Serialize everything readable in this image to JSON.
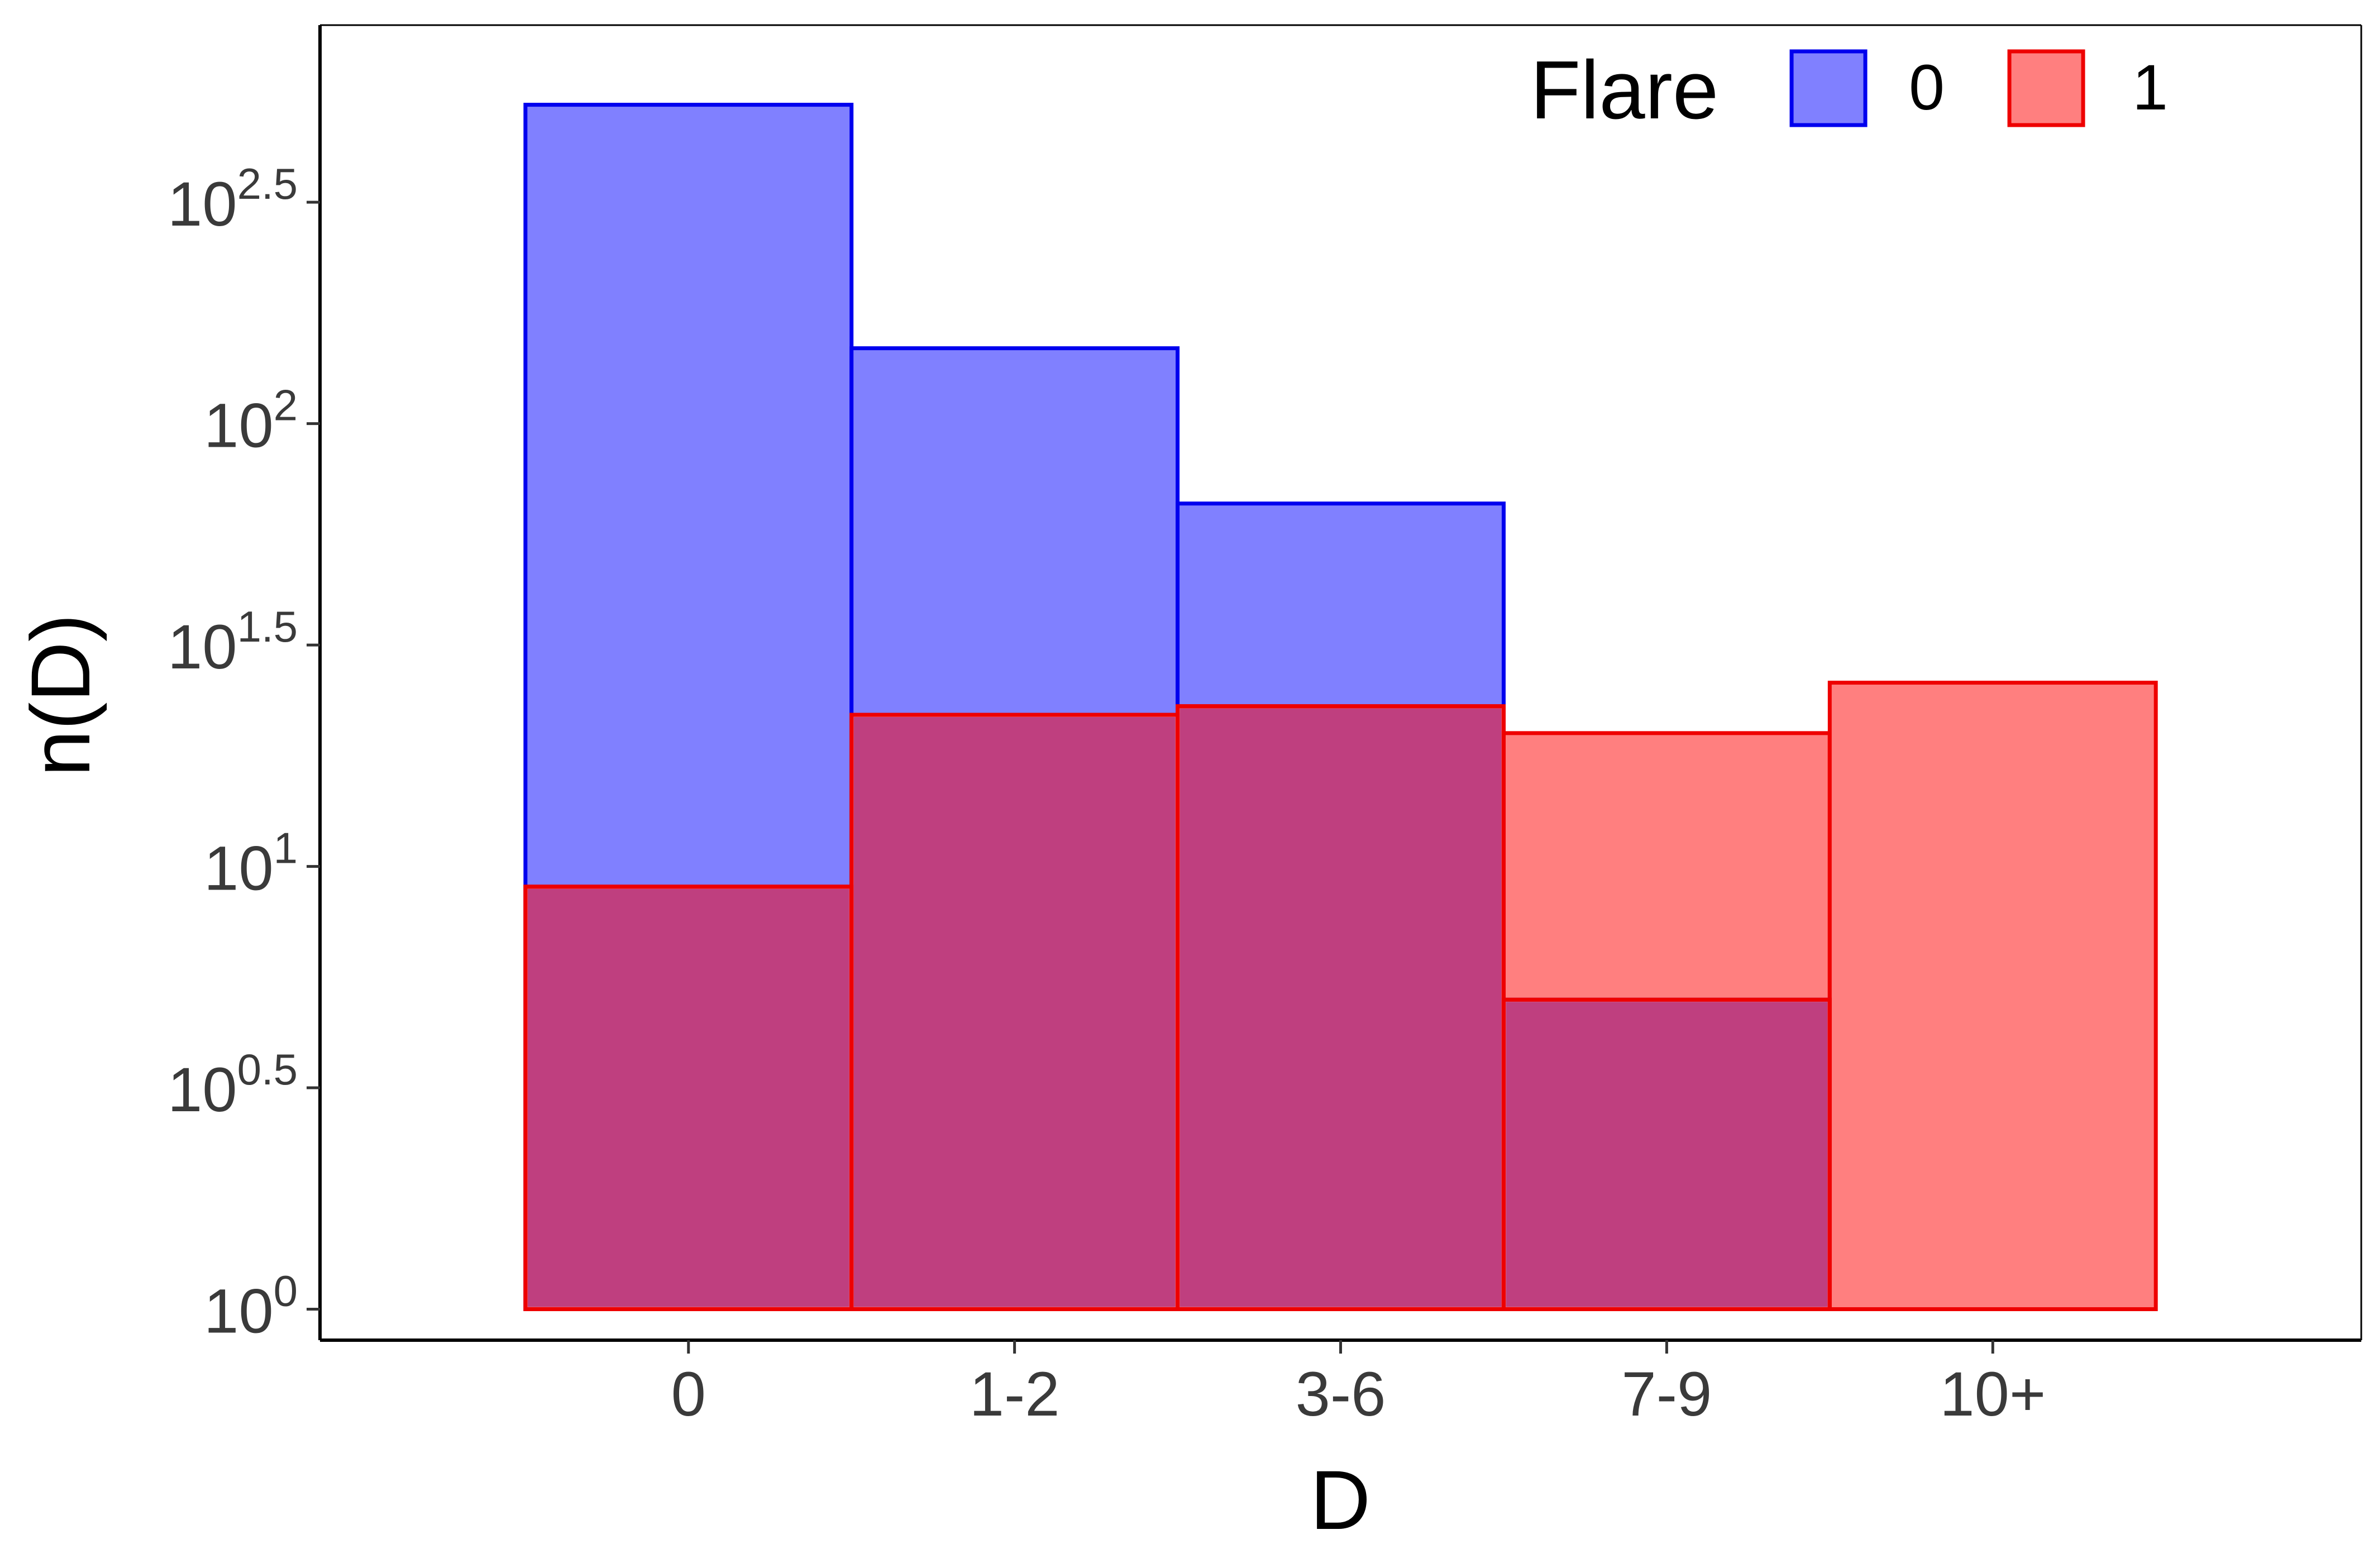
{
  "chart_data": {
    "type": "bar",
    "categories": [
      "0",
      "1-2",
      "3-6",
      "7-9",
      "10+"
    ],
    "xlabel": "D",
    "ylabel": "n(D)",
    "yscale": "log10",
    "ylim_log10": [
      -0.07,
      2.9
    ],
    "yticks_log10": [
      {
        "base": "10",
        "exp": "0",
        "value": 0
      },
      {
        "base": "10",
        "exp": "0.5",
        "value": 0.5
      },
      {
        "base": "10",
        "exp": "1",
        "value": 1
      },
      {
        "base": "10",
        "exp": "1.5",
        "value": 1.5
      },
      {
        "base": "10",
        "exp": "2",
        "value": 2
      },
      {
        "base": "10",
        "exp": "2.5",
        "value": 2.5
      }
    ],
    "legend": {
      "title": "Flare",
      "placement": "top-right"
    },
    "series": [
      {
        "name": "0",
        "fill": "#8080ff",
        "stroke": "#0000ee",
        "values": [
          525,
          148,
          66,
          5,
          null
        ]
      },
      {
        "name": "1",
        "fill": "#ff7f7f",
        "stroke": "#ee0000",
        "values": [
          9,
          22,
          23,
          20,
          26
        ]
      }
    ],
    "overlap_fill": "#bf3f7f",
    "grid": false
  }
}
